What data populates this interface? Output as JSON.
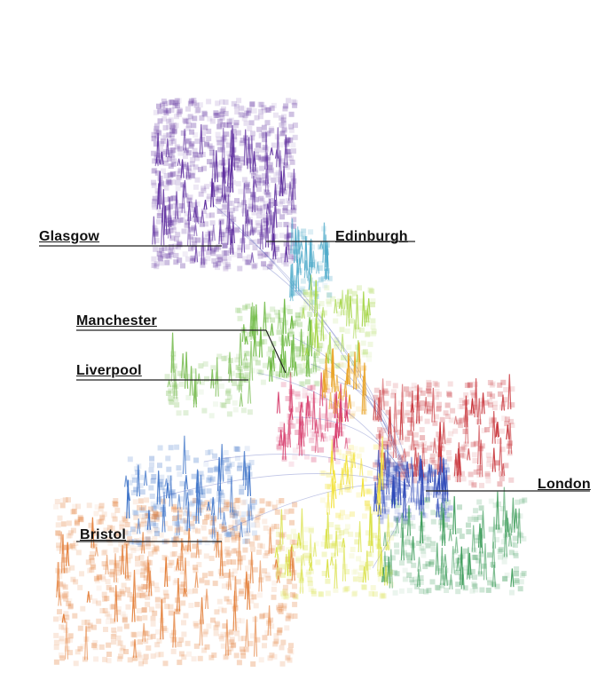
{
  "map": {
    "labels": [
      {
        "id": "glasgow",
        "text": "Glasgow"
      },
      {
        "id": "edinburgh",
        "text": "Edinburgh"
      },
      {
        "id": "manchester",
        "text": "Manchester"
      },
      {
        "id": "liverpool",
        "text": "Liverpool"
      },
      {
        "id": "london",
        "text": "London"
      },
      {
        "id": "bristol",
        "text": "Bristol"
      }
    ],
    "regions": [
      {
        "name": "scotland-west",
        "color": "#5b2a9c"
      },
      {
        "name": "edinburgh",
        "color": "#4aa8c8"
      },
      {
        "name": "north-england",
        "color": "#6bb840"
      },
      {
        "name": "north-east",
        "color": "#a6d64a"
      },
      {
        "name": "liverpool",
        "color": "#7fbf5a"
      },
      {
        "name": "midlands-west",
        "color": "#d63a6a"
      },
      {
        "name": "midlands",
        "color": "#e8a020"
      },
      {
        "name": "east-anglia",
        "color": "#c8343a"
      },
      {
        "name": "london",
        "color": "#2e49b8"
      },
      {
        "name": "south-east",
        "color": "#3d9c5a"
      },
      {
        "name": "south",
        "color": "#d8e040"
      },
      {
        "name": "central-south",
        "color": "#f2e23a"
      },
      {
        "name": "wales",
        "color": "#3f74c8"
      },
      {
        "name": "south-west",
        "color": "#e37f3a"
      }
    ]
  }
}
